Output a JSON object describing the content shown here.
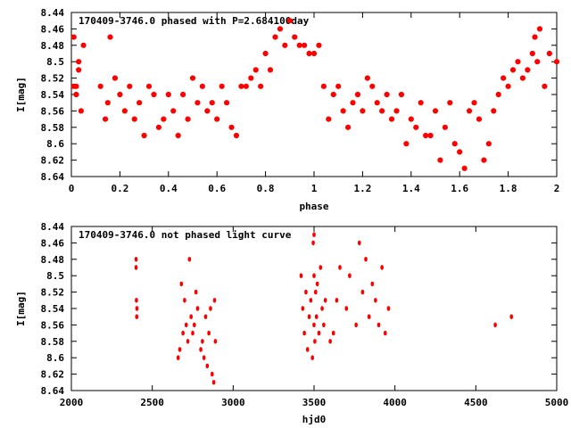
{
  "chart_data": [
    {
      "type": "scatter",
      "title": "170409-3746.0 phased with P=2.684100day",
      "xlabel": "phase",
      "ylabel": "I[mag]",
      "xlim": [
        0,
        2
      ],
      "ylim": [
        8.64,
        8.44
      ],
      "y_inverted": true,
      "xticks": [
        "0",
        "0.2",
        "0.4",
        "0.6",
        "0.8",
        "1",
        "1.2",
        "1.4",
        "1.6",
        "1.8",
        "2"
      ],
      "yticks": [
        "8.44",
        "8.46",
        "8.48",
        "8.5",
        "8.52",
        "8.54",
        "8.56",
        "8.58",
        "8.6",
        "8.62",
        "8.64"
      ],
      "marker_color": "#ff0000",
      "series": [
        {
          "x": [
            0.01,
            0.02,
            0.03,
            0.05,
            0.02,
            0.04,
            0.01,
            0.03,
            0.12,
            0.14,
            0.16,
            0.18,
            0.15,
            0.2,
            0.22,
            0.24,
            0.26,
            0.28,
            0.3,
            0.32,
            0.34,
            0.36,
            0.38,
            0.4,
            0.42,
            0.44,
            0.46,
            0.48,
            0.5,
            0.52,
            0.54,
            0.56,
            0.58,
            0.6,
            0.62,
            0.64,
            0.66,
            0.68,
            0.7,
            0.72,
            0.74,
            0.76,
            0.78,
            0.8,
            0.82,
            0.84,
            0.86,
            0.88,
            0.9,
            0.92,
            0.94,
            0.96,
            0.98,
            1.0,
            1.02,
            1.04,
            1.06,
            1.08,
            1.1,
            1.12,
            1.14,
            1.16,
            1.18,
            1.2,
            1.22,
            1.24,
            1.26,
            1.28,
            1.3,
            1.32,
            1.34,
            1.36,
            1.38,
            1.4,
            1.42,
            1.44,
            1.46,
            1.48,
            1.5,
            1.52,
            1.54,
            1.56,
            1.58,
            1.6,
            1.62,
            1.64,
            1.66,
            1.68,
            1.7,
            1.72,
            1.74,
            1.76,
            1.78,
            1.8,
            1.82,
            1.84,
            1.86,
            1.88,
            1.9,
            1.91,
            1.92,
            1.93,
            1.95,
            1.97,
            2.0
          ],
          "y": [
            8.47,
            8.53,
            8.51,
            8.48,
            8.54,
            8.56,
            8.53,
            8.5,
            8.53,
            8.57,
            8.47,
            8.52,
            8.55,
            8.54,
            8.56,
            8.53,
            8.57,
            8.55,
            8.59,
            8.53,
            8.54,
            8.58,
            8.57,
            8.54,
            8.56,
            8.59,
            8.54,
            8.57,
            8.52,
            8.55,
            8.53,
            8.56,
            8.55,
            8.57,
            8.53,
            8.55,
            8.58,
            8.59,
            8.53,
            8.53,
            8.52,
            8.51,
            8.53,
            8.49,
            8.51,
            8.47,
            8.46,
            8.48,
            8.45,
            8.47,
            8.48,
            8.48,
            8.49,
            8.49,
            8.48,
            8.53,
            8.57,
            8.54,
            8.53,
            8.56,
            8.58,
            8.55,
            8.54,
            8.56,
            8.52,
            8.53,
            8.55,
            8.56,
            8.54,
            8.57,
            8.56,
            8.54,
            8.6,
            8.57,
            8.58,
            8.55,
            8.59,
            8.59,
            8.56,
            8.62,
            8.58,
            8.55,
            8.6,
            8.61,
            8.63,
            8.56,
            8.55,
            8.57,
            8.62,
            8.6,
            8.56,
            8.54,
            8.52,
            8.53,
            8.51,
            8.5,
            8.52,
            8.51,
            8.49,
            8.47,
            8.5,
            8.46,
            8.53,
            8.49,
            8.5
          ]
        }
      ]
    },
    {
      "type": "scatter",
      "title": "170409-3746.0 not phased light curve",
      "xlabel": "hjd0",
      "ylabel": "I[mag]",
      "xlim": [
        2000,
        5000
      ],
      "ylim": [
        8.64,
        8.44
      ],
      "y_inverted": true,
      "xticks": [
        "2000",
        "2500",
        "3000",
        "3500",
        "4000",
        "4500",
        "5000"
      ],
      "yticks": [
        "8.44",
        "8.46",
        "8.48",
        "8.5",
        "8.52",
        "8.54",
        "8.56",
        "8.58",
        "8.6",
        "8.62",
        "8.64"
      ],
      "marker_color": "#ff0000",
      "series": [
        {
          "x": [
            2400,
            2400,
            2402,
            2404,
            2405,
            2660,
            2670,
            2680,
            2690,
            2700,
            2710,
            2720,
            2730,
            2740,
            2750,
            2760,
            2770,
            2780,
            2800,
            2810,
            2820,
            2830,
            2840,
            2850,
            2860,
            2870,
            2880,
            2885,
            2890,
            3420,
            3430,
            3440,
            3450,
            3460,
            3470,
            3480,
            3490,
            3495,
            3500,
            3500,
            3500,
            3505,
            3510,
            3515,
            3520,
            3530,
            3540,
            3550,
            3560,
            3570,
            3600,
            3620,
            3640,
            3660,
            3700,
            3720,
            3760,
            3780,
            3800,
            3820,
            3840,
            3860,
            3880,
            3900,
            3920,
            3940,
            3960,
            4620,
            4720
          ],
          "y": [
            8.48,
            8.49,
            8.53,
            8.55,
            8.54,
            8.6,
            8.59,
            8.51,
            8.57,
            8.53,
            8.56,
            8.58,
            8.48,
            8.55,
            8.57,
            8.56,
            8.52,
            8.54,
            8.59,
            8.58,
            8.6,
            8.55,
            8.61,
            8.57,
            8.54,
            8.62,
            8.63,
            8.53,
            8.58,
            8.5,
            8.54,
            8.57,
            8.52,
            8.59,
            8.55,
            8.53,
            8.6,
            8.46,
            8.45,
            8.5,
            8.56,
            8.58,
            8.52,
            8.55,
            8.51,
            8.57,
            8.49,
            8.54,
            8.56,
            8.53,
            8.58,
            8.57,
            8.53,
            8.49,
            8.54,
            8.5,
            8.56,
            8.46,
            8.52,
            8.48,
            8.55,
            8.51,
            8.53,
            8.56,
            8.49,
            8.57,
            8.54,
            8.56,
            8.55
          ]
        }
      ]
    }
  ]
}
